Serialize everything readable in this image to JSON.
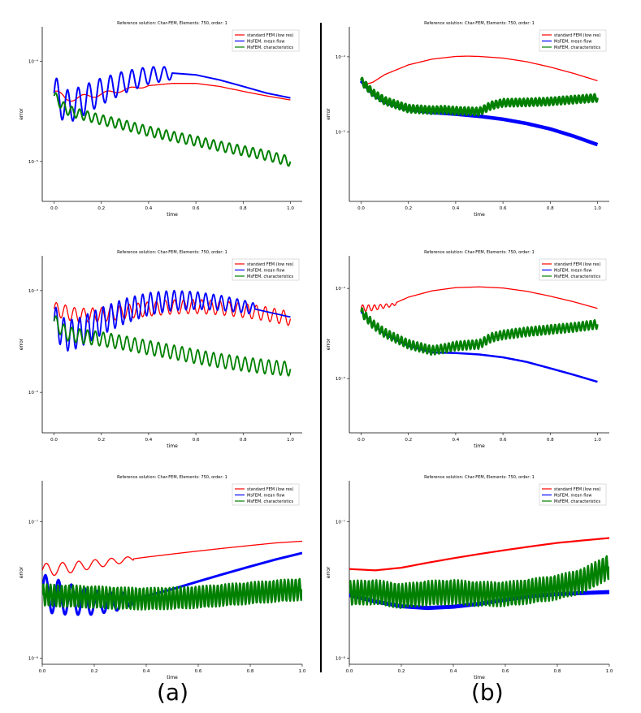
{
  "figure": {
    "label_a": "(a)",
    "label_b": "(b)"
  },
  "legend_entries": [
    {
      "name": "standard FEM (low res)",
      "color": "#ff0000"
    },
    {
      "name": "MsFEM, mean flow",
      "color": "#0000ff"
    },
    {
      "name": "MsFEM, characteristics",
      "color": "#008000"
    }
  ],
  "chart_data": [
    {
      "id": "a1",
      "type": "line",
      "title": "Reference solution: Char-FEM, Elements: 750, order: 1",
      "xlabel": "time",
      "ylabel": "error",
      "yscale": "log",
      "xlim": [
        -0.05,
        1.05
      ],
      "ylim": [
        4e-06,
        0.00022
      ],
      "xticks": [
        0.0,
        0.2,
        0.4,
        0.6,
        0.8,
        1.0
      ],
      "xtick_labels": [
        "0.0",
        "0.2",
        "0.4",
        "0.6",
        "0.8",
        "1.0"
      ],
      "yticks": [
        1e-05,
        0.0001
      ],
      "ytick_labels": [
        "10⁻⁵",
        "10⁻⁴"
      ],
      "series": [
        {
          "name": "standard FEM (low res)",
          "color": "#ff0000",
          "width": 1.3,
          "x": [
            0,
            0.05,
            0.1,
            0.2,
            0.3,
            0.4,
            0.5,
            0.6,
            0.7,
            0.8,
            0.9,
            1.0
          ],
          "y": [
            5e-05,
            4.2e-05,
            4.3e-05,
            4.7e-05,
            5.2e-05,
            5.7e-05,
            6e-05,
            6e-05,
            5.6e-05,
            5e-05,
            4.5e-05,
            4.1e-05
          ],
          "osc": {
            "amp": 0.03,
            "cycles": 10,
            "until": 0.4
          }
        },
        {
          "name": "MsFEM, mean flow",
          "color": "#0000ff",
          "width": 2.0,
          "x": [
            0,
            0.05,
            0.1,
            0.2,
            0.3,
            0.4,
            0.5,
            0.6,
            0.7,
            0.8,
            0.9,
            1.0
          ],
          "y": [
            4.8e-05,
            3.5e-05,
            3.8e-05,
            5e-05,
            6.2e-05,
            7.2e-05,
            7.6e-05,
            7.3e-05,
            6.5e-05,
            5.6e-05,
            4.8e-05,
            4.3e-05
          ],
          "osc": {
            "amp": 0.18,
            "cycles": 22,
            "until": 0.5
          }
        },
        {
          "name": "MsFEM, characteristics",
          "color": "#008000",
          "width": 2.0,
          "x": [
            0,
            0.05,
            0.1,
            0.2,
            0.3,
            0.4,
            0.5,
            0.6,
            0.7,
            0.8,
            0.9,
            1.0
          ],
          "y": [
            4.5e-05,
            3.3e-05,
            3e-05,
            2.6e-05,
            2.3e-05,
            2e-05,
            1.78e-05,
            1.6e-05,
            1.42e-05,
            1.28e-05,
            1.15e-05,
            1e-05
          ],
          "osc": {
            "amp": 0.05,
            "cycles": 30,
            "until": 1.0
          }
        }
      ]
    },
    {
      "id": "b1",
      "type": "line",
      "title": "Reference solution: Char-FEM, Elements: 750, order: 1",
      "xlabel": "time",
      "ylabel": "error",
      "yscale": "log",
      "xlim": [
        -0.05,
        1.05
      ],
      "ylim": [
        1.2e-06,
        0.00025
      ],
      "xticks": [
        0.0,
        0.2,
        0.4,
        0.6,
        0.8,
        1.0
      ],
      "xtick_labels": [
        "0.0",
        "0.2",
        "0.4",
        "0.6",
        "0.8",
        "1.0"
      ],
      "yticks": [
        1e-05,
        0.0001
      ],
      "ytick_labels": [
        "10⁻⁵",
        "10⁻⁴"
      ],
      "series": [
        {
          "name": "standard FEM (low res)",
          "color": "#ff0000",
          "width": 1.3,
          "x": [
            0,
            0.02,
            0.05,
            0.1,
            0.2,
            0.3,
            0.4,
            0.45,
            0.5,
            0.6,
            0.7,
            0.8,
            0.9,
            1.0
          ],
          "y": [
            5e-05,
            4.3e-05,
            4.6e-05,
            5.8e-05,
            7.8e-05,
            9.3e-05,
            0.000101,
            0.000102,
            0.000101,
            9.6e-05,
            8.6e-05,
            7.3e-05,
            6e-05,
            4.8e-05
          ],
          "osc": {
            "amp": 0,
            "cycles": 0,
            "until": 0
          }
        },
        {
          "name": "MsFEM, mean flow",
          "color": "#0000ff",
          "width": 4.5,
          "x": [
            0,
            0.05,
            0.1,
            0.2,
            0.3,
            0.4,
            0.5,
            0.6,
            0.7,
            0.8,
            0.9,
            1.0
          ],
          "y": [
            4.8e-05,
            3.2e-05,
            2.5e-05,
            2e-05,
            1.82e-05,
            1.73e-05,
            1.62e-05,
            1.48e-05,
            1.3e-05,
            1.1e-05,
            8.8e-06,
            6.8e-06
          ],
          "osc": {
            "amp": 0,
            "cycles": 0,
            "until": 0
          }
        },
        {
          "name": "MsFEM, characteristics",
          "color": "#008000",
          "width": 3.0,
          "x": [
            0,
            0.05,
            0.1,
            0.2,
            0.3,
            0.35,
            0.4,
            0.5,
            0.55,
            0.6,
            0.7,
            0.8,
            0.9,
            1.0
          ],
          "y": [
            4.8e-05,
            3.3e-05,
            2.6e-05,
            2.05e-05,
            1.95e-05,
            1.98e-05,
            1.92e-05,
            1.87e-05,
            2.25e-05,
            2.45e-05,
            2.48e-05,
            2.55e-05,
            2.7e-05,
            2.85e-05
          ],
          "osc": {
            "amp": 0.05,
            "cycles": 60,
            "until": 1.0
          }
        }
      ]
    },
    {
      "id": "a2",
      "type": "line",
      "title": "Reference solution: Char-FEM, Elements: 750, order: 1",
      "xlabel": "time",
      "ylabel": "error",
      "yscale": "log",
      "xlim": [
        -0.05,
        1.05
      ],
      "ylim": [
        4e-06,
        0.00022
      ],
      "xticks": [
        0.0,
        0.2,
        0.4,
        0.6,
        0.8,
        1.0
      ],
      "xtick_labels": [
        "0.0",
        "0.2",
        "0.4",
        "0.6",
        "0.8",
        "1.0"
      ],
      "yticks": [
        1e-05,
        0.0001
      ],
      "ytick_labels": [
        "10⁻⁵",
        "10⁻⁴"
      ],
      "series": [
        {
          "name": "standard FEM (low res)",
          "color": "#ff0000",
          "width": 1.3,
          "x": [
            0,
            0.1,
            0.2,
            0.3,
            0.4,
            0.5,
            0.6,
            0.7,
            0.8,
            0.9,
            1.0
          ],
          "y": [
            6.6e-05,
            5.7e-05,
            5.8e-05,
            6.2e-05,
            6.6e-05,
            6.9e-05,
            7e-05,
            6.8e-05,
            6.4e-05,
            5.9e-05,
            5.3e-05
          ],
          "osc": {
            "amp": 0.07,
            "cycles": 26,
            "until": 1.0
          }
        },
        {
          "name": "MsFEM, mean flow",
          "color": "#0000ff",
          "width": 1.8,
          "x": [
            0,
            0.05,
            0.1,
            0.2,
            0.3,
            0.4,
            0.5,
            0.6,
            0.7,
            0.8,
            0.9,
            1.0
          ],
          "y": [
            5e-05,
            3.6e-05,
            3.8e-05,
            5e-05,
            6.3e-05,
            7.4e-05,
            8e-05,
            8e-05,
            7.6e-05,
            7e-05,
            6.2e-05,
            5.5e-05
          ],
          "osc": {
            "amp": 0.16,
            "cycles": 30,
            "until": 0.85
          }
        },
        {
          "name": "MsFEM, characteristics",
          "color": "#008000",
          "width": 1.8,
          "x": [
            0,
            0.05,
            0.1,
            0.2,
            0.3,
            0.4,
            0.5,
            0.6,
            0.7,
            0.8,
            0.9,
            1.0
          ],
          "y": [
            5e-05,
            3.8e-05,
            3.6e-05,
            3.35e-05,
            3.05e-05,
            2.75e-05,
            2.5e-05,
            2.25e-05,
            2.05e-05,
            1.9e-05,
            1.78e-05,
            1.7e-05
          ],
          "osc": {
            "amp": 0.07,
            "cycles": 30,
            "until": 1.0
          }
        }
      ]
    },
    {
      "id": "b2",
      "type": "line",
      "title": "Reference solution: Char-FEM, Elements: 750, order: 1",
      "xlabel": "time",
      "ylabel": "error",
      "yscale": "log",
      "xlim": [
        -0.05,
        1.05
      ],
      "ylim": [
        2.5e-06,
        0.00023
      ],
      "xticks": [
        0.0,
        0.2,
        0.4,
        0.6,
        0.8,
        1.0
      ],
      "xtick_labels": [
        "0.0",
        "0.2",
        "0.4",
        "0.6",
        "0.8",
        "1.0"
      ],
      "yticks": [
        1e-05,
        0.0001
      ],
      "ytick_labels": [
        "10⁻⁵",
        "10⁻⁴"
      ],
      "series": [
        {
          "name": "standard FEM (low res)",
          "color": "#ff0000",
          "width": 1.3,
          "x": [
            0,
            0.05,
            0.14,
            0.15,
            0.2,
            0.3,
            0.4,
            0.5,
            0.6,
            0.7,
            0.8,
            0.9,
            1.0
          ],
          "y": [
            6e-05,
            6.1e-05,
            6.6e-05,
            7e-05,
            8e-05,
            9.4e-05,
            0.000102,
            0.000104,
            0.000101,
            9.3e-05,
            8.2e-05,
            7.1e-05,
            6e-05
          ],
          "osc": {
            "amp": 0.04,
            "cycles": 40,
            "until": 0.15
          }
        },
        {
          "name": "MsFEM, mean flow",
          "color": "#0000ff",
          "width": 2.5,
          "x": [
            0,
            0.05,
            0.1,
            0.2,
            0.3,
            0.4,
            0.5,
            0.6,
            0.7,
            0.8,
            0.9,
            1.0
          ],
          "y": [
            5.5e-05,
            4e-05,
            3.1e-05,
            2.3e-05,
            1.95e-05,
            1.92e-05,
            1.85e-05,
            1.72e-05,
            1.53e-05,
            1.3e-05,
            1.1e-05,
            9.2e-06
          ],
          "osc": {
            "amp": 0,
            "cycles": 0,
            "until": 0
          }
        },
        {
          "name": "MsFEM, characteristics",
          "color": "#008000",
          "width": 2.5,
          "x": [
            0,
            0.05,
            0.1,
            0.2,
            0.3,
            0.35,
            0.4,
            0.5,
            0.55,
            0.6,
            0.7,
            0.8,
            0.9,
            1.0
          ],
          "y": [
            5.5e-05,
            4e-05,
            3.2e-05,
            2.4e-05,
            2.05e-05,
            2.15e-05,
            2.3e-05,
            2.4e-05,
            2.85e-05,
            3.05e-05,
            3.3e-05,
            3.5e-05,
            3.7e-05,
            4e-05
          ],
          "osc": {
            "amp": 0.05,
            "cycles": 60,
            "until": 1.0
          }
        }
      ]
    },
    {
      "id": "a3",
      "type": "line",
      "title": "Reference solution: Char-FEM, Elements: 750, order: 1",
      "xlabel": "time",
      "ylabel": "error",
      "yscale": "log",
      "xlim": [
        0.0,
        1.0
      ],
      "ylim": [
        9e-09,
        2e-07
      ],
      "xticks": [
        0.0,
        0.2,
        0.4,
        0.6,
        0.8,
        1.0
      ],
      "xtick_labels": [
        "0.0",
        "0.2",
        "0.4",
        "0.6",
        "0.8",
        "1.0"
      ],
      "yticks": [
        1e-08,
        1e-07
      ],
      "ytick_labels": [
        "10⁻⁸",
        "10⁻⁷"
      ],
      "series": [
        {
          "name": "standard FEM (low res)",
          "color": "#ff0000",
          "width": 1.3,
          "x": [
            0,
            0.1,
            0.2,
            0.3,
            0.4,
            0.5,
            0.6,
            0.7,
            0.8,
            0.9,
            1.0
          ],
          "y": [
            4.4e-08,
            4.6e-08,
            4.9e-08,
            5.2e-08,
            5.5e-08,
            5.8e-08,
            6.1e-08,
            6.4e-08,
            6.7e-08,
            7e-08,
            7.2e-08
          ],
          "osc": {
            "amp": 0.05,
            "cycles": 16,
            "until": 0.35
          }
        },
        {
          "name": "MsFEM, mean flow",
          "color": "#0000ff",
          "width": 3.0,
          "x": [
            0,
            0.1,
            0.2,
            0.3,
            0.4,
            0.5,
            0.6,
            0.7,
            0.8,
            0.9,
            1.0
          ],
          "y": [
            3e-08,
            2.7e-08,
            2.55e-08,
            2.6e-08,
            2.85e-08,
            3.2e-08,
            3.65e-08,
            4.15e-08,
            4.7e-08,
            5.3e-08,
            5.9e-08
          ],
          "osc": {
            "amp": 0.14,
            "cycles": 20,
            "until": 0.35
          }
        },
        {
          "name": "MsFEM, characteristics",
          "color": "#008000",
          "width": 2.5,
          "x": [
            0,
            0.1,
            0.2,
            0.3,
            0.4,
            0.5,
            0.6,
            0.7,
            0.8,
            0.9,
            1.0
          ],
          "y": [
            2.9e-08,
            2.85e-08,
            2.8e-08,
            2.75e-08,
            2.72e-08,
            2.75e-08,
            2.8e-08,
            2.9e-08,
            3e-08,
            3.1e-08,
            3.2e-08
          ],
          "osc": {
            "amp": 0.08,
            "cycles": 70,
            "until": 1.0
          }
        }
      ]
    },
    {
      "id": "b3",
      "type": "line",
      "title": "Reference solution: Char-FEM, Elements: 750, order: 1",
      "xlabel": "time",
      "ylabel": "error",
      "yscale": "log",
      "xlim": [
        0.0,
        1.0
      ],
      "ylim": [
        9e-09,
        2e-07
      ],
      "xticks": [
        0.0,
        0.2,
        0.4,
        0.6,
        0.8,
        1.0
      ],
      "xtick_labels": [
        "0.0",
        "0.2",
        "0.4",
        "0.6",
        "0.8",
        "1.0"
      ],
      "yticks": [
        1e-08,
        1e-07
      ],
      "ytick_labels": [
        "10⁻⁸",
        "10⁻⁷"
      ],
      "series": [
        {
          "name": "standard FEM (low res)",
          "color": "#ff0000",
          "width": 2.2,
          "x": [
            0,
            0.1,
            0.2,
            0.3,
            0.4,
            0.5,
            0.6,
            0.7,
            0.8,
            0.9,
            1.0
          ],
          "y": [
            4.5e-08,
            4.4e-08,
            4.6e-08,
            5e-08,
            5.4e-08,
            5.8e-08,
            6.2e-08,
            6.6e-08,
            7e-08,
            7.3e-08,
            7.6e-08
          ],
          "osc": {
            "amp": 0,
            "cycles": 0,
            "until": 0
          }
        },
        {
          "name": "MsFEM, mean flow",
          "color": "#0000ff",
          "width": 5.0,
          "x": [
            0,
            0.1,
            0.2,
            0.3,
            0.4,
            0.5,
            0.6,
            0.7,
            0.8,
            0.9,
            1.0
          ],
          "y": [
            2.9e-08,
            2.6e-08,
            2.4e-08,
            2.33e-08,
            2.38e-08,
            2.5e-08,
            2.68e-08,
            2.85e-08,
            2.95e-08,
            3e-08,
            3.05e-08
          ],
          "osc": {
            "amp": 0,
            "cycles": 0,
            "until": 0
          }
        },
        {
          "name": "MsFEM, characteristics",
          "color": "#008000",
          "width": 2.5,
          "x": [
            0,
            0.1,
            0.2,
            0.3,
            0.4,
            0.5,
            0.6,
            0.7,
            0.8,
            0.9,
            1.0
          ],
          "y": [
            3e-08,
            3.05e-08,
            2.85e-08,
            3e-08,
            3.05e-08,
            2.95e-08,
            2.95e-08,
            3.1e-08,
            3.3e-08,
            3.7e-08,
            4.7e-08
          ],
          "osc": {
            "amp": 0.09,
            "cycles": 70,
            "until": 1.0
          }
        }
      ]
    }
  ]
}
